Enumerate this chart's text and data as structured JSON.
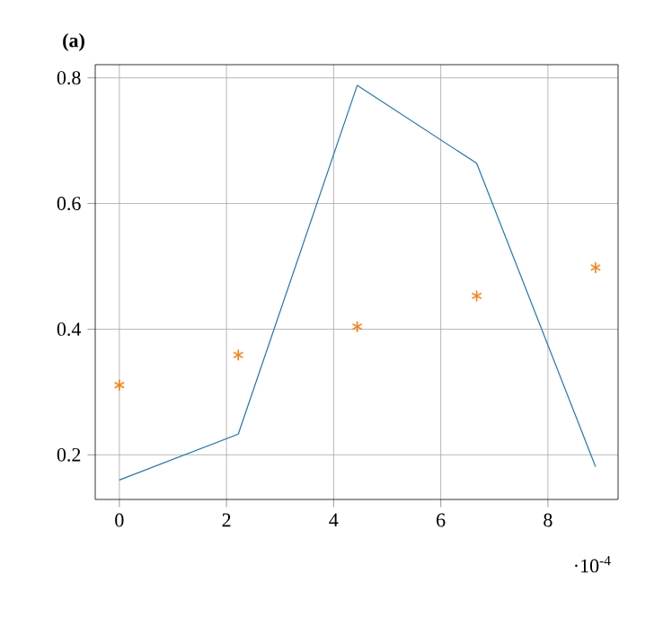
{
  "chart_data": {
    "type": "line",
    "title": "(a)",
    "annotations": [
      "·10$^{-4}$"
    ],
    "x": [
      0,
      2.22,
      4.44,
      6.67,
      8.89
    ],
    "series": [
      {
        "color": "#1f77b4",
        "values": [
          0.16,
          0.233,
          0.788,
          0.664,
          0.181
        ],
        "marker": "none"
      },
      {
        "type": "scatter",
        "color": "#ff7f0e",
        "values": [
          0.311,
          0.359,
          0.404,
          0.453,
          0.498
        ],
        "marker": "cross"
      }
    ],
    "xlim": [
      -0.45,
      9.31
    ],
    "ylim": [
      0.129,
      0.821
    ],
    "xticks": [
      0,
      2,
      4,
      6,
      8
    ],
    "yticks": [
      0.2,
      0.4,
      0.6,
      0.8
    ],
    "grid": true
  }
}
